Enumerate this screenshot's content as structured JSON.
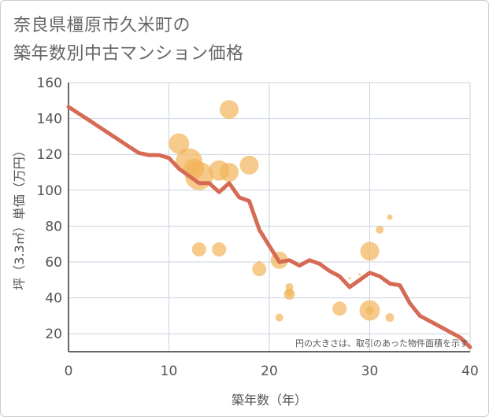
{
  "title": {
    "line1": "奈良県橿原市久米町の",
    "line2": "築年数別中古マンション価格"
  },
  "colors": {
    "bubble": "#f2b45a",
    "line": "#d66b55",
    "grid": "#c9d3e0",
    "background": "#ffffff"
  },
  "chart_data": {
    "type": "scatter",
    "title": "奈良県橿原市久米町の築年数別中古マンション価格",
    "xlabel": "築年数（年）",
    "ylabel": "坪（3.3㎡）単価（万円）",
    "xlim": [
      0,
      40
    ],
    "ylim": [
      10,
      160
    ],
    "x_ticks": [
      "0",
      "10",
      "20",
      "30",
      "40"
    ],
    "y_ticks": [
      "20",
      "40",
      "60",
      "80",
      "100",
      "120",
      "140",
      "160"
    ],
    "grid": true,
    "note": "円の大きさは、取引のあった物件面積を示す",
    "bubbles": [
      {
        "x": 11,
        "y": 126,
        "size": 13
      },
      {
        "x": 12,
        "y": 116,
        "size": 17
      },
      {
        "x": 12.5,
        "y": 112,
        "size": 13
      },
      {
        "x": 13,
        "y": 108,
        "size": 18
      },
      {
        "x": 15,
        "y": 111,
        "size": 13
      },
      {
        "x": 16,
        "y": 145,
        "size": 12
      },
      {
        "x": 16,
        "y": 110,
        "size": 12
      },
      {
        "x": 18,
        "y": 114,
        "size": 12
      },
      {
        "x": 13,
        "y": 67,
        "size": 9
      },
      {
        "x": 15,
        "y": 67,
        "size": 9
      },
      {
        "x": 19,
        "y": 56,
        "size": 9
      },
      {
        "x": 19,
        "y": 60,
        "size": 1.5
      },
      {
        "x": 21,
        "y": 61,
        "size": 11
      },
      {
        "x": 21,
        "y": 29,
        "size": 5
      },
      {
        "x": 22,
        "y": 46,
        "size": 5
      },
      {
        "x": 22,
        "y": 42,
        "size": 7
      },
      {
        "x": 22,
        "y": 43,
        "size": 5
      },
      {
        "x": 27,
        "y": 34,
        "size": 9
      },
      {
        "x": 28,
        "y": 51,
        "size": 1.5
      },
      {
        "x": 29,
        "y": 53,
        "size": 1.5
      },
      {
        "x": 30,
        "y": 66,
        "size": 12
      },
      {
        "x": 30,
        "y": 33,
        "size": 13
      },
      {
        "x": 30,
        "y": 33,
        "size": 5
      },
      {
        "x": 31,
        "y": 78,
        "size": 5
      },
      {
        "x": 32,
        "y": 85,
        "size": 3.5
      },
      {
        "x": 32,
        "y": 29,
        "size": 5.5
      }
    ],
    "trend_line": {
      "x": [
        0,
        1,
        2,
        3,
        4,
        5,
        6,
        7,
        8,
        9,
        10,
        11,
        12,
        13,
        14,
        15,
        16,
        17,
        18,
        19,
        20,
        21,
        22,
        23,
        24,
        25,
        26,
        27,
        28,
        29,
        30,
        31,
        32,
        33,
        34,
        35,
        36,
        37,
        38,
        39,
        40
      ],
      "y": [
        146.5,
        142.8,
        139.2,
        135.5,
        131.8,
        128.1,
        124.4,
        120.8,
        119.6,
        119.6,
        118,
        112,
        108,
        104,
        104,
        99,
        104,
        96,
        94,
        78,
        69,
        60,
        61,
        58,
        61,
        59,
        55,
        52,
        46,
        50,
        54,
        52,
        48,
        47,
        37,
        30,
        27,
        24,
        21,
        18,
        12.5
      ]
    }
  }
}
